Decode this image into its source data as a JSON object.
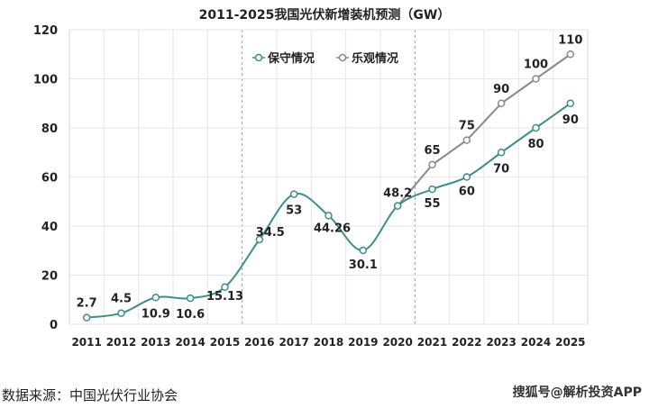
{
  "chart_data": {
    "type": "line",
    "title": "2011-2025我国光伏新增装机预测（GW）",
    "xlabel": "",
    "ylabel": "",
    "ylim": [
      0,
      120
    ],
    "yticks": [
      0,
      20,
      40,
      60,
      80,
      100,
      120
    ],
    "grid": true,
    "legend_position": "top-center",
    "categories": [
      "2011",
      "2012",
      "2013",
      "2014",
      "2015",
      "2016",
      "2017",
      "2018",
      "2019",
      "2020",
      "2021",
      "2022",
      "2023",
      "2024",
      "2025"
    ],
    "series": [
      {
        "name": "保守情况",
        "color": "#3e8e8c",
        "smooth": true,
        "values": [
          2.7,
          4.5,
          10.9,
          10.6,
          15.13,
          34.5,
          53,
          44.26,
          30.1,
          48.2,
          55,
          60,
          70,
          80,
          90
        ],
        "labels": [
          "2.7",
          "4.5",
          "10.9",
          "10.6",
          "15.13",
          "34.5",
          "53",
          "44.26",
          "30.1",
          "48.2",
          "55",
          "60",
          "70",
          "80",
          "90"
        ]
      },
      {
        "name": "乐观情况",
        "color": "#8a8a8a",
        "smooth": false,
        "values": [
          null,
          null,
          null,
          null,
          null,
          null,
          null,
          null,
          null,
          48.2,
          65,
          75,
          90,
          100,
          110
        ],
        "labels": [
          null,
          null,
          null,
          null,
          null,
          null,
          null,
          null,
          null,
          null,
          "65",
          "75",
          "90",
          "100",
          "110"
        ]
      }
    ],
    "dividers_between": [
      [
        "2015",
        "2016"
      ],
      [
        "2020",
        "2021"
      ]
    ]
  },
  "footer": {
    "source": "数据来源：中国光伏行业协会",
    "watermark": "搜狐号@解析投资APP"
  }
}
